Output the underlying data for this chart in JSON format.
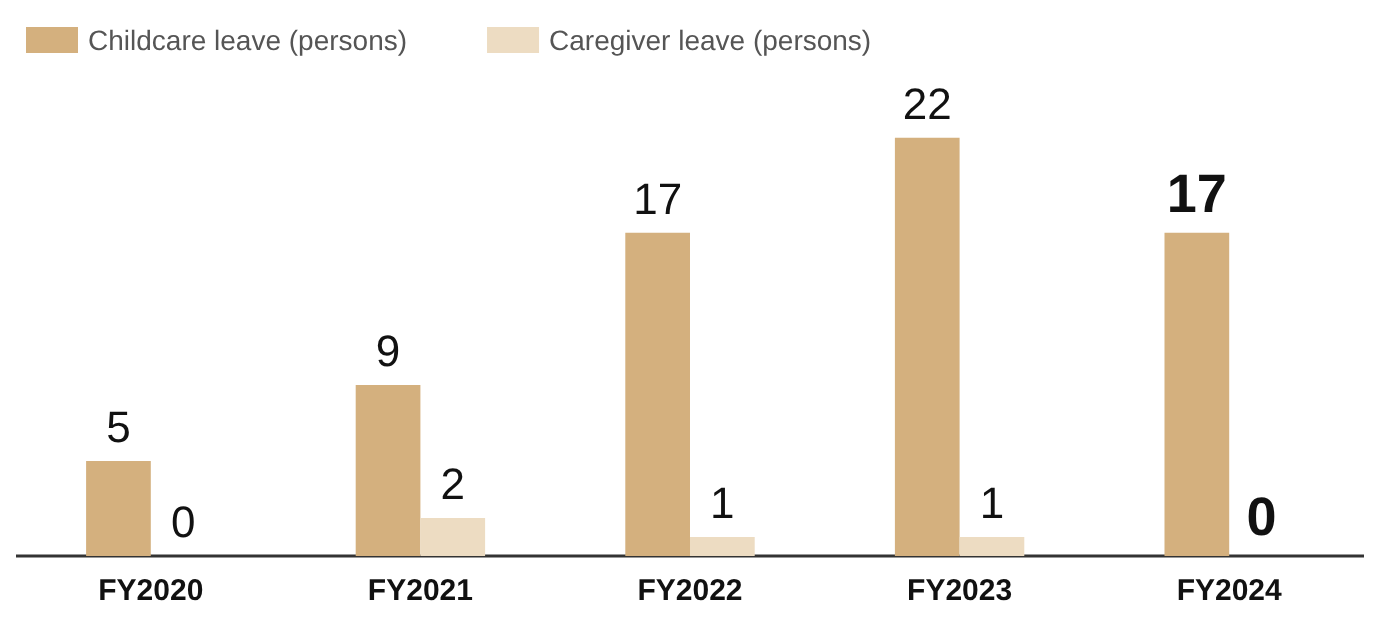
{
  "chart_data": {
    "type": "bar",
    "categories": [
      "FY2020",
      "FY2021",
      "FY2022",
      "FY2023",
      "FY2024"
    ],
    "series": [
      {
        "name": "Childcare leave (persons)",
        "color": "#d4b07e",
        "values": [
          5,
          9,
          17,
          22,
          17
        ]
      },
      {
        "name": "Caregiver leave (persons)",
        "color": "#eddcc2",
        "values": [
          0,
          2,
          1,
          1,
          0
        ]
      }
    ],
    "data_labels": true,
    "legend": "top left",
    "grid": false
  }
}
